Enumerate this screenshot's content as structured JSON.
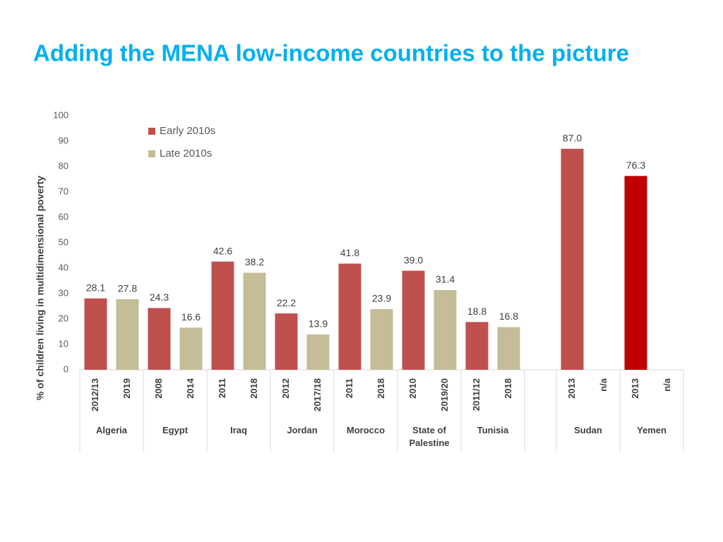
{
  "chart_data": {
    "type": "bar",
    "title": "Adding the MENA low-income countries to the picture",
    "y_label": "% of children living in multidimensional poverty",
    "categories": [
      "Algeria",
      "Egypt",
      "Iraq",
      "Jordan",
      "Morocco",
      "State of Palestine",
      "Tunisia",
      "Sudan",
      "Yemen"
    ],
    "series": [
      {
        "name": "Early 2010s",
        "color": "#c0504d",
        "colors": [
          "#c0504d",
          "#c0504d",
          "#c0504d",
          "#c0504d",
          "#c0504d",
          "#c0504d",
          "#c0504d",
          "#c0504d",
          "#c00000"
        ],
        "years": [
          "2012/13",
          "2008",
          "2011",
          "2012",
          "2011",
          "2010",
          "2011/12",
          "2013",
          "2013"
        ],
        "values": [
          28.1,
          24.3,
          42.6,
          22.2,
          41.8,
          39,
          18.8,
          87,
          76.3
        ],
        "value_labels": [
          "28.1",
          "24.3",
          "42.6",
          "22.2",
          "41.8",
          "39.0",
          "18.8",
          "87.0",
          "76.3"
        ]
      },
      {
        "name": "Late 2010s",
        "color": "#c4bd97",
        "years": [
          "2019",
          "2014",
          "2018",
          "2017/18",
          "2018",
          "2019/20",
          "2018",
          "n/a",
          "n/a"
        ],
        "values": [
          27.8,
          16.6,
          38.2,
          13.9,
          23.9,
          31.4,
          16.8,
          null,
          null
        ],
        "value_labels": [
          "27.8",
          "16.6",
          "38.2",
          "13.9",
          "23.9",
          "31.4",
          "16.8",
          null,
          null
        ]
      }
    ],
    "ylim": [
      0,
      100
    ],
    "yticks": [
      0,
      10,
      20,
      30,
      40,
      50,
      60,
      70,
      80,
      90,
      100
    ],
    "grid": false,
    "legend": "top-left"
  }
}
